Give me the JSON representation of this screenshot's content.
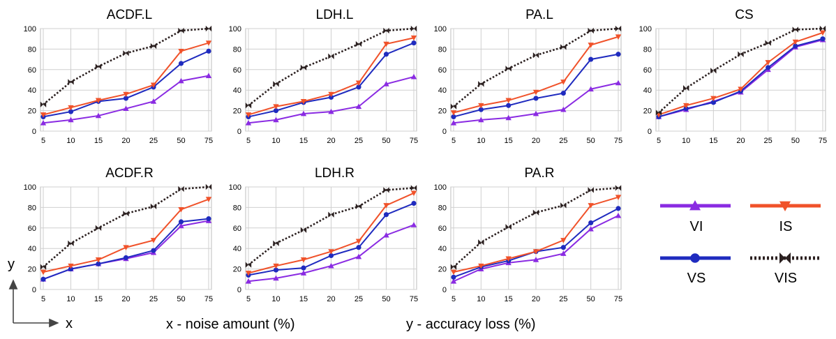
{
  "footer": {
    "x_caption": "x - noise amount (%)",
    "y_caption": "y - accuracy loss (%)",
    "x_letter": "x",
    "y_letter": "y"
  },
  "styles": {
    "VI": {
      "color": "#8a2be2",
      "marker": "triangle-up",
      "dash": "solid"
    },
    "IS": {
      "color": "#f0522a",
      "marker": "triangle-down",
      "dash": "solid"
    },
    "VS": {
      "color": "#1f2bbf",
      "marker": "circle",
      "dash": "solid"
    },
    "VIS": {
      "color": "#2b2020",
      "marker": "bowtie",
      "dash": "dotted"
    }
  },
  "legend": [
    "VI",
    "IS",
    "VS",
    "VIS"
  ],
  "chart_data": [
    {
      "type": "line",
      "title": "ACDF.L",
      "categories": [
        "5",
        "10",
        "15",
        "20",
        "25",
        "50",
        "75"
      ],
      "ylim": [
        0,
        100
      ],
      "yticks": [
        0,
        20,
        40,
        60,
        80,
        100
      ],
      "grid": true,
      "series": [
        {
          "name": "VIS",
          "values": [
            26,
            48,
            63,
            76,
            83,
            98,
            100
          ]
        },
        {
          "name": "IS",
          "values": [
            16,
            23,
            30,
            36,
            45,
            78,
            86
          ]
        },
        {
          "name": "VS",
          "values": [
            14,
            19,
            29,
            32,
            43,
            66,
            78
          ]
        },
        {
          "name": "VI",
          "values": [
            8,
            11,
            15,
            22,
            29,
            49,
            54
          ]
        }
      ]
    },
    {
      "type": "line",
      "title": "LDH.L",
      "categories": [
        "5",
        "10",
        "15",
        "20",
        "25",
        "50",
        "75"
      ],
      "ylim": [
        0,
        100
      ],
      "yticks": [
        0,
        20,
        40,
        60,
        80,
        100
      ],
      "grid": true,
      "series": [
        {
          "name": "VIS",
          "values": [
            25,
            46,
            62,
            73,
            85,
            98,
            100
          ]
        },
        {
          "name": "IS",
          "values": [
            16,
            24,
            29,
            36,
            47,
            85,
            91
          ]
        },
        {
          "name": "VS",
          "values": [
            14,
            20,
            28,
            33,
            43,
            75,
            86
          ]
        },
        {
          "name": "VI",
          "values": [
            8,
            11,
            17,
            19,
            24,
            46,
            53
          ]
        }
      ]
    },
    {
      "type": "line",
      "title": "PA.L",
      "categories": [
        "5",
        "10",
        "15",
        "20",
        "25",
        "50",
        "75"
      ],
      "ylim": [
        0,
        100
      ],
      "yticks": [
        0,
        20,
        40,
        60,
        80,
        100
      ],
      "grid": true,
      "series": [
        {
          "name": "VIS",
          "values": [
            24,
            46,
            61,
            74,
            82,
            98,
            100
          ]
        },
        {
          "name": "IS",
          "values": [
            18,
            25,
            30,
            38,
            48,
            84,
            92
          ]
        },
        {
          "name": "VS",
          "values": [
            14,
            21,
            25,
            32,
            37,
            70,
            75
          ]
        },
        {
          "name": "VI",
          "values": [
            8,
            11,
            13,
            17,
            21,
            41,
            47
          ]
        }
      ]
    },
    {
      "type": "line",
      "title": "CS",
      "categories": [
        "5",
        "10",
        "15",
        "20",
        "25",
        "50",
        "75"
      ],
      "ylim": [
        0,
        100
      ],
      "yticks": [
        0,
        20,
        40,
        60,
        80,
        100
      ],
      "grid": true,
      "series": [
        {
          "name": "VIS",
          "values": [
            18,
            42,
            59,
            75,
            86,
            99,
            100
          ]
        },
        {
          "name": "IS",
          "values": [
            16,
            25,
            32,
            41,
            67,
            87,
            96
          ]
        },
        {
          "name": "VS",
          "values": [
            14,
            22,
            28,
            39,
            62,
            83,
            90
          ]
        },
        {
          "name": "VI",
          "values": [
            14,
            21,
            29,
            38,
            60,
            82,
            89
          ]
        }
      ]
    },
    {
      "type": "line",
      "title": "ACDF.R",
      "categories": [
        "5",
        "10",
        "15",
        "20",
        "25",
        "50",
        "75"
      ],
      "ylim": [
        0,
        100
      ],
      "yticks": [
        0,
        20,
        40,
        60,
        80,
        100
      ],
      "grid": true,
      "series": [
        {
          "name": "VIS",
          "values": [
            22,
            45,
            60,
            74,
            81,
            98,
            100
          ]
        },
        {
          "name": "IS",
          "values": [
            17,
            23,
            29,
            41,
            48,
            78,
            88
          ]
        },
        {
          "name": "VS",
          "values": [
            10,
            20,
            25,
            31,
            38,
            66,
            69
          ]
        },
        {
          "name": "VI",
          "values": [
            10,
            20,
            25,
            30,
            36,
            62,
            67
          ]
        }
      ]
    },
    {
      "type": "line",
      "title": "LDH.R",
      "categories": [
        "5",
        "10",
        "15",
        "20",
        "25",
        "50",
        "75"
      ],
      "ylim": [
        0,
        100
      ],
      "yticks": [
        0,
        20,
        40,
        60,
        80,
        100
      ],
      "grid": true,
      "series": [
        {
          "name": "VIS",
          "values": [
            24,
            45,
            58,
            73,
            81,
            97,
            99
          ]
        },
        {
          "name": "IS",
          "values": [
            16,
            23,
            29,
            37,
            47,
            82,
            94
          ]
        },
        {
          "name": "VS",
          "values": [
            14,
            19,
            21,
            33,
            41,
            73,
            84
          ]
        },
        {
          "name": "VI",
          "values": [
            8,
            11,
            16,
            23,
            32,
            53,
            63
          ]
        }
      ]
    },
    {
      "type": "line",
      "title": "PA.R",
      "categories": [
        "5",
        "10",
        "15",
        "20",
        "25",
        "50",
        "75"
      ],
      "ylim": [
        0,
        100
      ],
      "yticks": [
        0,
        20,
        40,
        60,
        80,
        100
      ],
      "grid": true,
      "series": [
        {
          "name": "VIS",
          "values": [
            22,
            46,
            61,
            75,
            82,
            97,
            99
          ]
        },
        {
          "name": "IS",
          "values": [
            17,
            23,
            30,
            37,
            48,
            82,
            90
          ]
        },
        {
          "name": "VS",
          "values": [
            12,
            22,
            28,
            37,
            41,
            65,
            79
          ]
        },
        {
          "name": "VI",
          "values": [
            8,
            20,
            26,
            29,
            35,
            59,
            72
          ]
        }
      ]
    }
  ]
}
